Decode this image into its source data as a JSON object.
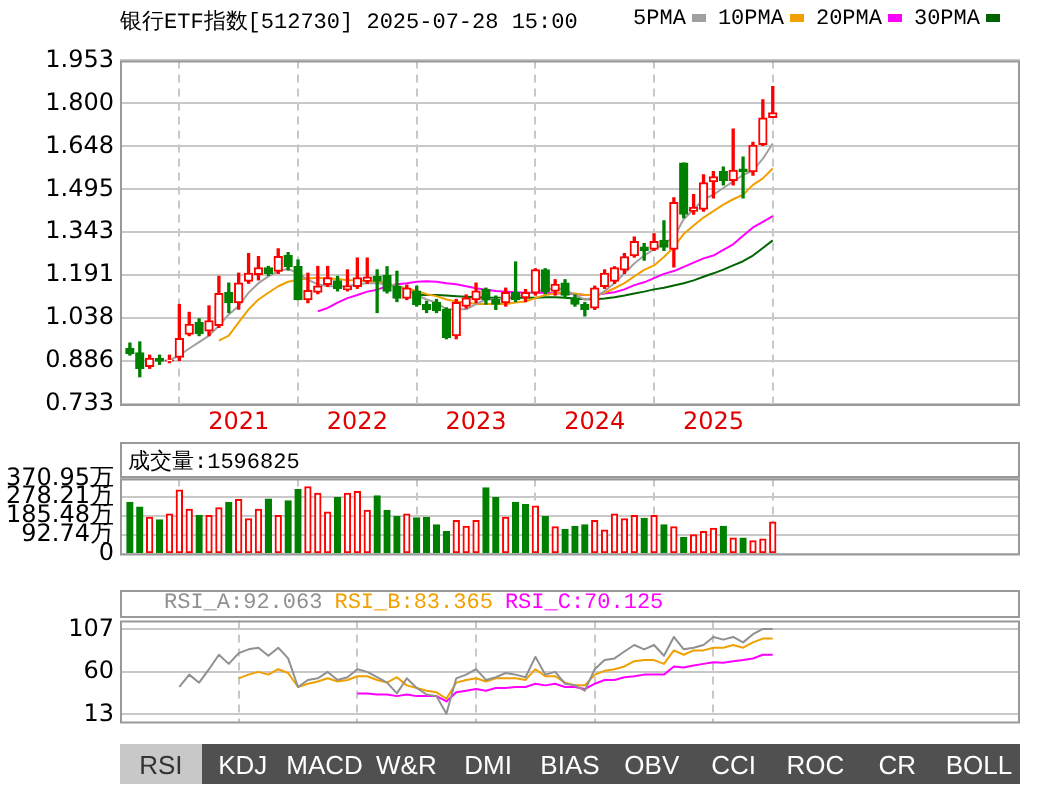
{
  "chart_data": [
    {
      "type": "candlestick",
      "title": "银行ETF指数[512730] 2025-07-28 15:00",
      "legend": "top right",
      "grid": true,
      "x": [
        "2020-02",
        "2020-03",
        "2020-04",
        "2020-05",
        "2020-06",
        "2020-07",
        "2020-08",
        "2020-09",
        "2020-10",
        "2020-11",
        "2020-12",
        "2021-01",
        "2021-02",
        "2021-03",
        "2021-04",
        "2021-05",
        "2021-06",
        "2021-07",
        "2021-08",
        "2021-09",
        "2021-10",
        "2021-11",
        "2021-12",
        "2022-01",
        "2022-02",
        "2022-03",
        "2022-04",
        "2022-05",
        "2022-06",
        "2022-07",
        "2022-08",
        "2022-09",
        "2022-10",
        "2022-11",
        "2022-12",
        "2023-01",
        "2023-02",
        "2023-03",
        "2023-04",
        "2023-05",
        "2023-06",
        "2023-07",
        "2023-08",
        "2023-09",
        "2023-10",
        "2023-11",
        "2023-12",
        "2024-01",
        "2024-02",
        "2024-03",
        "2024-04",
        "2024-05",
        "2024-06",
        "2024-07",
        "2024-08",
        "2024-09",
        "2024-10",
        "2024-11",
        "2024-12",
        "2025-01",
        "2025-02",
        "2025-03",
        "2025-04",
        "2025-05",
        "2025-06",
        "2025-07"
      ],
      "ohlc": [
        [
          0.93,
          0.949,
          0.907,
          0.912
        ],
        [
          0.914,
          0.953,
          0.83,
          0.86
        ],
        [
          0.867,
          0.906,
          0.86,
          0.895
        ],
        [
          0.894,
          0.906,
          0.874,
          0.885
        ],
        [
          0.886,
          0.906,
          0.88,
          0.889
        ],
        [
          0.9,
          1.086,
          0.888,
          0.965
        ],
        [
          0.981,
          1.058,
          0.976,
          1.016
        ],
        [
          1.023,
          1.035,
          0.976,
          0.983
        ],
        [
          0.993,
          1.081,
          0.976,
          1.028
        ],
        [
          1.012,
          1.186,
          1.005,
          1.125
        ],
        [
          1.128,
          1.162,
          1.058,
          1.093
        ],
        [
          1.093,
          1.197,
          1.07,
          1.162
        ],
        [
          1.169,
          1.267,
          1.162,
          1.197
        ],
        [
          1.193,
          1.256,
          1.174,
          1.216
        ],
        [
          1.216,
          1.221,
          1.19,
          1.197
        ],
        [
          1.205,
          1.284,
          1.197,
          1.256
        ],
        [
          1.26,
          1.27,
          1.209,
          1.221
        ],
        [
          1.221,
          1.244,
          1.104,
          1.104
        ],
        [
          1.104,
          1.197,
          1.093,
          1.135
        ],
        [
          1.13,
          1.221,
          1.125,
          1.151
        ],
        [
          1.158,
          1.221,
          1.151,
          1.181
        ],
        [
          1.17,
          1.186,
          1.135,
          1.144
        ],
        [
          1.14,
          1.209,
          1.135,
          1.151
        ],
        [
          1.151,
          1.251,
          1.144,
          1.181
        ],
        [
          1.169,
          1.251,
          1.162,
          1.183
        ],
        [
          1.186,
          1.209,
          1.058,
          1.169
        ],
        [
          1.19,
          1.22,
          1.128,
          1.134
        ],
        [
          1.151,
          1.204,
          1.097,
          1.109
        ],
        [
          1.109,
          1.155,
          1.104,
          1.144
        ],
        [
          1.134,
          1.151,
          1.081,
          1.086
        ],
        [
          1.086,
          1.097,
          1.058,
          1.069
        ],
        [
          1.093,
          1.104,
          1.058,
          1.065
        ],
        [
          1.069,
          1.074,
          0.965,
          0.97
        ],
        [
          0.976,
          1.104,
          0.965,
          1.093
        ],
        [
          1.081,
          1.12,
          1.074,
          1.109
        ],
        [
          1.104,
          1.162,
          1.093,
          1.134
        ],
        [
          1.139,
          1.144,
          1.088,
          1.104
        ],
        [
          1.104,
          1.116,
          1.069,
          1.088
        ],
        [
          1.093,
          1.144,
          1.081,
          1.128
        ],
        [
          1.128,
          1.237,
          1.097,
          1.104
        ],
        [
          1.111,
          1.139,
          1.097,
          1.128
        ],
        [
          1.128,
          1.213,
          1.12,
          1.209
        ],
        [
          1.209,
          1.213,
          1.125,
          1.132
        ],
        [
          1.134,
          1.174,
          1.12,
          1.158
        ],
        [
          1.162,
          1.174,
          1.111,
          1.12
        ],
        [
          1.109,
          1.12,
          1.081,
          1.088
        ],
        [
          1.086,
          1.093,
          1.046,
          1.069
        ],
        [
          1.074,
          1.151,
          1.069,
          1.144
        ],
        [
          1.151,
          1.209,
          1.144,
          1.197
        ],
        [
          1.169,
          1.22,
          1.162,
          1.216
        ],
        [
          1.209,
          1.267,
          1.197,
          1.255
        ],
        [
          1.26,
          1.325,
          1.255,
          1.309
        ],
        [
          1.29,
          1.302,
          1.244,
          1.279
        ],
        [
          1.283,
          1.337,
          1.279,
          1.309
        ],
        [
          1.314,
          1.383,
          1.279,
          1.29
        ],
        [
          1.283,
          1.465,
          1.22,
          1.448
        ],
        [
          1.588,
          1.588,
          1.395,
          1.407
        ],
        [
          1.418,
          1.476,
          1.407,
          1.43
        ],
        [
          1.425,
          1.546,
          1.418,
          1.518
        ],
        [
          1.523,
          1.558,
          1.465,
          1.539
        ],
        [
          1.558,
          1.574,
          1.511,
          1.527
        ],
        [
          1.527,
          1.709,
          1.511,
          1.562
        ],
        [
          1.567,
          1.609,
          1.465,
          1.558
        ],
        [
          1.558,
          1.662,
          1.546,
          1.651
        ],
        [
          1.655,
          1.813,
          1.651,
          1.748
        ],
        [
          1.751,
          1.86,
          1.751,
          1.767
        ]
      ],
      "colors": [
        "#008000",
        "#008000",
        "#ff0000",
        "#008000",
        "#ff0000",
        "#ff0000",
        "#ff0000",
        "#008000",
        "#ff0000",
        "#ff0000",
        "#008000",
        "#ff0000",
        "#ff0000",
        "#ff0000",
        "#008000",
        "#ff0000",
        "#008000",
        "#008000",
        "#ff0000",
        "#ff0000",
        "#ff0000",
        "#008000",
        "#ff0000",
        "#ff0000",
        "#ff0000",
        "#008000",
        "#008000",
        "#008000",
        "#ff0000",
        "#008000",
        "#008000",
        "#008000",
        "#008000",
        "#ff0000",
        "#ff0000",
        "#ff0000",
        "#008000",
        "#008000",
        "#ff0000",
        "#008000",
        "#ff0000",
        "#ff0000",
        "#008000",
        "#ff0000",
        "#008000",
        "#008000",
        "#008000",
        "#ff0000",
        "#ff0000",
        "#ff0000",
        "#ff0000",
        "#ff0000",
        "#008000",
        "#ff0000",
        "#008000",
        "#ff0000",
        "#008000",
        "#ff0000",
        "#ff0000",
        "#ff0000",
        "#008000",
        "#ff0000",
        "#008000",
        "#ff0000",
        "#ff0000",
        "#ff0000"
      ],
      "series": [
        {
          "name": "5PMA",
          "type": "line",
          "color": "#a0a0a0",
          "values": [
            null,
            null,
            null,
            null,
            0.888,
            0.906,
            0.93,
            0.953,
            0.976,
            1.011,
            1.051,
            1.081,
            1.128,
            1.162,
            1.186,
            1.204,
            1.213,
            1.197,
            1.174,
            1.158,
            1.151,
            1.151,
            1.151,
            1.158,
            1.162,
            1.162,
            1.158,
            1.151,
            1.139,
            1.12,
            1.104,
            1.093,
            1.069,
            1.069,
            1.069,
            1.088,
            1.104,
            1.104,
            1.111,
            1.116,
            1.12,
            1.134,
            1.139,
            1.144,
            1.139,
            1.12,
            1.104,
            1.111,
            1.134,
            1.162,
            1.197,
            1.232,
            1.26,
            1.283,
            1.302,
            1.325,
            1.39,
            1.423,
            1.46,
            1.476,
            1.5,
            1.523,
            1.546,
            1.562,
            1.604,
            1.658
          ]
        },
        {
          "name": "10PMA",
          "type": "line",
          "color": "#f0a000",
          "values": [
            null,
            null,
            null,
            null,
            null,
            null,
            null,
            null,
            null,
            0.958,
            0.976,
            1.023,
            1.069,
            1.104,
            1.128,
            1.151,
            1.167,
            1.174,
            1.179,
            1.181,
            1.179,
            1.177,
            1.172,
            1.172,
            1.169,
            1.167,
            1.162,
            1.151,
            1.144,
            1.134,
            1.123,
            1.116,
            1.104,
            1.097,
            1.093,
            1.088,
            1.088,
            1.088,
            1.088,
            1.093,
            1.097,
            1.109,
            1.12,
            1.125,
            1.128,
            1.125,
            1.12,
            1.12,
            1.128,
            1.144,
            1.162,
            1.186,
            1.209,
            1.225,
            1.255,
            1.29,
            1.337,
            1.367,
            1.395,
            1.418,
            1.441,
            1.46,
            1.476,
            1.511,
            1.534,
            1.569
          ]
        },
        {
          "name": "20PMA",
          "type": "line",
          "color": "#ff00ff",
          "values": [
            null,
            null,
            null,
            null,
            null,
            null,
            null,
            null,
            null,
            null,
            null,
            null,
            null,
            null,
            null,
            null,
            null,
            null,
            null,
            1.062,
            1.074,
            1.093,
            1.109,
            1.12,
            1.132,
            1.139,
            1.151,
            1.158,
            1.162,
            1.167,
            1.169,
            1.167,
            1.162,
            1.158,
            1.151,
            1.144,
            1.139,
            1.134,
            1.132,
            1.13,
            1.128,
            1.128,
            1.128,
            1.125,
            1.125,
            1.123,
            1.12,
            1.12,
            1.125,
            1.13,
            1.14,
            1.155,
            1.165,
            1.18,
            1.195,
            1.205,
            1.22,
            1.235,
            1.25,
            1.26,
            1.28,
            1.3,
            1.33,
            1.36,
            1.38,
            1.4
          ]
        },
        {
          "name": "30PMA",
          "type": "line",
          "color": "#006400",
          "values": [
            null,
            null,
            null,
            null,
            null,
            null,
            null,
            null,
            null,
            null,
            null,
            null,
            null,
            null,
            null,
            null,
            null,
            null,
            null,
            null,
            null,
            null,
            null,
            null,
            null,
            null,
            null,
            null,
            null,
            1.12,
            1.12,
            1.12,
            1.118,
            1.116,
            1.114,
            1.112,
            1.11,
            1.11,
            1.11,
            1.11,
            1.11,
            1.11,
            1.112,
            1.112,
            1.11,
            1.108,
            1.105,
            1.105,
            1.108,
            1.112,
            1.118,
            1.125,
            1.132,
            1.14,
            1.146,
            1.154,
            1.162,
            1.172,
            1.185,
            1.197,
            1.21,
            1.225,
            1.24,
            1.26,
            1.287,
            1.314
          ]
        }
      ],
      "xlim": [
        "2020-01",
        "2027-08"
      ],
      "xticks": [
        {
          "value": "2021-01",
          "label": "2021"
        },
        {
          "value": "2022-01",
          "label": "2022"
        },
        {
          "value": "2023-01",
          "label": "2023"
        },
        {
          "value": "2024-01",
          "label": "2024"
        },
        {
          "value": "2025-01",
          "label": "2025"
        }
      ],
      "ylim": [
        0.733,
        1.953
      ],
      "yticks": [
        0.733,
        0.886,
        1.038,
        1.191,
        1.343,
        1.495,
        1.648,
        {
          "value": 1.8,
          "label": "1.800"
        },
        1.953
      ]
    },
    {
      "type": "bar",
      "title": "成交量:1596825",
      "grid": true,
      "tick_labels": "y",
      "x": [
        "2020-02",
        "2020-03",
        "2020-04",
        "2020-05",
        "2020-06",
        "2020-07",
        "2020-08",
        "2020-09",
        "2020-10",
        "2020-11",
        "2020-12",
        "2021-01",
        "2021-02",
        "2021-03",
        "2021-04",
        "2021-05",
        "2021-06",
        "2021-07",
        "2021-08",
        "2021-09",
        "2021-10",
        "2021-11",
        "2021-12",
        "2022-01",
        "2022-02",
        "2022-03",
        "2022-04",
        "2022-05",
        "2022-06",
        "2022-07",
        "2022-08",
        "2022-09",
        "2022-10",
        "2022-11",
        "2022-12",
        "2023-01",
        "2023-02",
        "2023-03",
        "2023-04",
        "2023-05",
        "2023-06",
        "2023-07",
        "2023-08",
        "2023-09",
        "2023-10",
        "2023-11",
        "2023-12",
        "2024-01",
        "2024-02",
        "2024-03",
        "2024-04",
        "2024-05",
        "2024-06",
        "2024-07",
        "2024-08",
        "2024-09",
        "2024-10",
        "2024-11",
        "2024-12",
        "2025-01",
        "2025-02",
        "2025-03",
        "2025-04",
        "2025-05",
        "2025-06",
        "2025-07"
      ],
      "values": [
        252,
        229,
        179,
        166,
        195,
        313,
        218,
        189,
        187,
        226,
        252,
        266,
        171,
        218,
        268,
        187,
        260,
        316,
        329,
        297,
        205,
        276,
        297,
        305,
        213,
        284,
        213,
        182,
        195,
        176,
        179,
        142,
        108,
        163,
        134,
        163,
        324,
        276,
        179,
        252,
        242,
        234,
        182,
        132,
        118,
        134,
        142,
        163,
        116,
        195,
        171,
        187,
        174,
        187,
        142,
        132,
        79,
        92,
        108,
        124,
        134,
        76,
        76,
        63,
        71,
        155
      ],
      "colors": [
        "#008000",
        "#008000",
        "#ff0000",
        "#008000",
        "#ff0000",
        "#ff0000",
        "#ff0000",
        "#008000",
        "#ff0000",
        "#ff0000",
        "#008000",
        "#ff0000",
        "#ff0000",
        "#ff0000",
        "#008000",
        "#ff0000",
        "#008000",
        "#008000",
        "#ff0000",
        "#ff0000",
        "#ff0000",
        "#008000",
        "#ff0000",
        "#ff0000",
        "#ff0000",
        "#008000",
        "#008000",
        "#008000",
        "#ff0000",
        "#008000",
        "#008000",
        "#008000",
        "#008000",
        "#ff0000",
        "#ff0000",
        "#ff0000",
        "#008000",
        "#008000",
        "#ff0000",
        "#008000",
        "#008000",
        "#ff0000",
        "#008000",
        "#ff0000",
        "#008000",
        "#008000",
        "#008000",
        "#ff0000",
        "#ff0000",
        "#ff0000",
        "#ff0000",
        "#ff0000",
        "#008000",
        "#ff0000",
        "#008000",
        "#ff0000",
        "#008000",
        "#ff0000",
        "#ff0000",
        "#ff0000",
        "#008000",
        "#ff0000",
        "#008000",
        "#ff0000",
        "#ff0000",
        "#ff0000"
      ],
      "xlim": [
        "2020-01",
        "2027-08"
      ],
      "xticks": [
        {
          "value": "2021-01",
          "label": null
        },
        {
          "value": "2022-01",
          "label": null
        },
        {
          "value": "2023-01",
          "label": null
        },
        {
          "value": "2024-01",
          "label": null
        },
        {
          "value": "2025-01",
          "label": null
        }
      ],
      "ylim": [
        0,
        370.95
      ],
      "yticks": [
        0,
        {
          "value": 92.74,
          "label": "92.74万"
        },
        {
          "value": 185.48,
          "label": "185.48万"
        },
        {
          "value": 278.21,
          "label": "278.21万"
        },
        {
          "value": 370.95,
          "label": "370.95万"
        }
      ]
    },
    {
      "type": "line",
      "legend": "top left",
      "grid": true,
      "tick_labels": "y",
      "x": [
        "2020-07",
        "2020-08",
        "2020-09",
        "2020-10",
        "2020-11",
        "2020-12",
        "2021-01",
        "2021-02",
        "2021-03",
        "2021-04",
        "2021-05",
        "2021-06",
        "2021-07",
        "2021-08",
        "2021-09",
        "2021-10",
        "2021-11",
        "2021-12",
        "2022-01",
        "2022-02",
        "2022-03",
        "2022-04",
        "2022-05",
        "2022-06",
        "2022-07",
        "2022-08",
        "2022-09",
        "2022-10",
        "2022-11",
        "2022-12",
        "2023-01",
        "2023-02",
        "2023-03",
        "2023-04",
        "2023-05",
        "2023-06",
        "2023-07",
        "2023-08",
        "2023-09",
        "2023-10",
        "2023-11",
        "2023-12",
        "2024-01",
        "2024-02",
        "2024-03",
        "2024-04",
        "2024-05",
        "2024-06",
        "2024-07",
        "2024-08",
        "2024-09",
        "2024-10",
        "2024-11",
        "2024-12",
        "2025-01",
        "2025-02",
        "2025-03",
        "2025-04",
        "2025-05",
        "2025-06",
        "2025-07"
      ],
      "series": [
        {
          "name": "RSI_A:92.063",
          "color": "#909090",
          "values": [
            43.3,
            57.0,
            48.1,
            63.0,
            79.0,
            68.9,
            80.8,
            85.0,
            86.8,
            77.9,
            86.8,
            74.9,
            43.3,
            51.1,
            52.9,
            60,
            51.1,
            54.1,
            63.0,
            60,
            54.1,
            48.1,
            36.2,
            52.9,
            42.2,
            35.0,
            33.2,
            13.6,
            52.9,
            57.0,
            63.0,
            51.1,
            54.1,
            58.8,
            57.0,
            54.1,
            76.7,
            57.0,
            60,
            46.9,
            45.1,
            39.2,
            63.0,
            73.1,
            74.9,
            82.6,
            89.8,
            85.0,
            89.8,
            77.9,
            98.7,
            85.0,
            86.8,
            89.8,
            98.7,
            95.7,
            98.7,
            92.7,
            101.7,
            107.6,
            107.6
          ]
        },
        {
          "name": "RSI_B:83.365",
          "color": "#f0a000",
          "values": [
            null,
            null,
            null,
            null,
            null,
            null,
            52.9,
            57.0,
            60,
            57.0,
            63.0,
            58.8,
            43.3,
            46.9,
            49.3,
            52.9,
            49.3,
            51.1,
            55.2,
            55.2,
            51.1,
            48.1,
            54.1,
            45.1,
            42.2,
            39.2,
            37.4,
            30.3,
            48.1,
            51.1,
            52.9,
            49.3,
            52.9,
            52.9,
            52.9,
            51.1,
            63.0,
            55.2,
            55.2,
            48.1,
            45.1,
            45.1,
            57.0,
            61.2,
            63.0,
            66.0,
            71.9,
            73.1,
            73.1,
            68.9,
            83.8,
            79.0,
            83.8,
            83.8,
            86.8,
            86.8,
            89.8,
            86.8,
            92.7,
            96.9,
            96.9
          ]
        },
        {
          "name": "RSI_C:70.125",
          "color": "#ff00ff",
          "values": [
            null,
            null,
            null,
            null,
            null,
            null,
            null,
            null,
            null,
            null,
            null,
            null,
            null,
            null,
            null,
            null,
            null,
            null,
            36.2,
            36.2,
            35.0,
            35.0,
            33.2,
            35.0,
            33.2,
            33.2,
            33.2,
            27.3,
            37.4,
            39.2,
            41.0,
            39.2,
            42.2,
            42.2,
            43.3,
            43.3,
            46.9,
            45.1,
            46.9,
            43.3,
            43.3,
            41.0,
            46.9,
            51.1,
            51.1,
            54.1,
            55.2,
            57.0,
            57.0,
            57.0,
            66.0,
            64.8,
            67.1,
            68.9,
            70.7,
            70.1,
            71.9,
            73.1,
            74.9,
            79.0,
            79.0
          ]
        }
      ],
      "xlim": [
        "2020-01",
        "2027-08"
      ],
      "xticks": [
        {
          "value": "2021-01",
          "label": null
        },
        {
          "value": "2022-01",
          "label": null
        },
        {
          "value": "2023-01",
          "label": null
        },
        {
          "value": "2024-01",
          "label": null
        },
        {
          "value": "2025-01",
          "label": null
        }
      ],
      "ylim": [
        5,
        117
      ],
      "yticks": [
        13,
        60,
        107
      ],
      "annotations": [
        "RSI",
        "KDJ",
        "MACD",
        "W&R",
        "DMI",
        "BIAS",
        "OBV",
        "CCI",
        "ROC",
        "CR",
        "BOLL"
      ]
    }
  ]
}
